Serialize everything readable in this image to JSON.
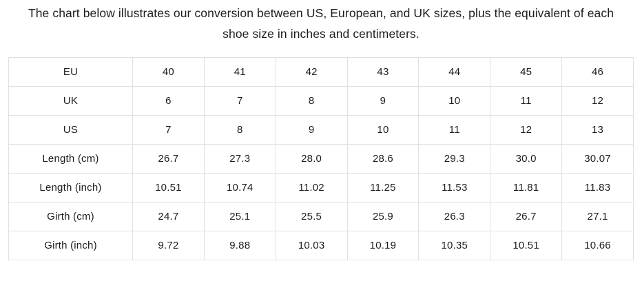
{
  "title": "The chart below illustrates our conversion between US, European, and UK sizes, plus the equivalent of each shoe size in inches and centimeters.",
  "table": {
    "rows": [
      {
        "label": "EU",
        "values": [
          "40",
          "41",
          "42",
          "43",
          "44",
          "45",
          "46"
        ]
      },
      {
        "label": "UK",
        "values": [
          "6",
          "7",
          "8",
          "9",
          "10",
          "11",
          "12"
        ]
      },
      {
        "label": "US",
        "values": [
          "7",
          "8",
          "9",
          "10",
          "11",
          "12",
          "13"
        ]
      },
      {
        "label": "Length (cm)",
        "values": [
          "26.7",
          "27.3",
          "28.0",
          "28.6",
          "29.3",
          "30.0",
          "30.07"
        ]
      },
      {
        "label": "Length (inch)",
        "values": [
          "10.51",
          "10.74",
          "11.02",
          "11.25",
          "11.53",
          "11.81",
          "11.83"
        ]
      },
      {
        "label": "Girth (cm)",
        "values": [
          "24.7",
          "25.1",
          "25.5",
          "25.9",
          "26.3",
          "26.7",
          "27.1"
        ]
      },
      {
        "label": "Girth (inch)",
        "values": [
          "9.72",
          "9.88",
          "10.03",
          "10.19",
          "10.35",
          "10.51",
          "10.66"
        ]
      }
    ]
  },
  "colors": {
    "text": "#1d1d1f",
    "border": "#e0e0e0",
    "background": "#ffffff"
  }
}
